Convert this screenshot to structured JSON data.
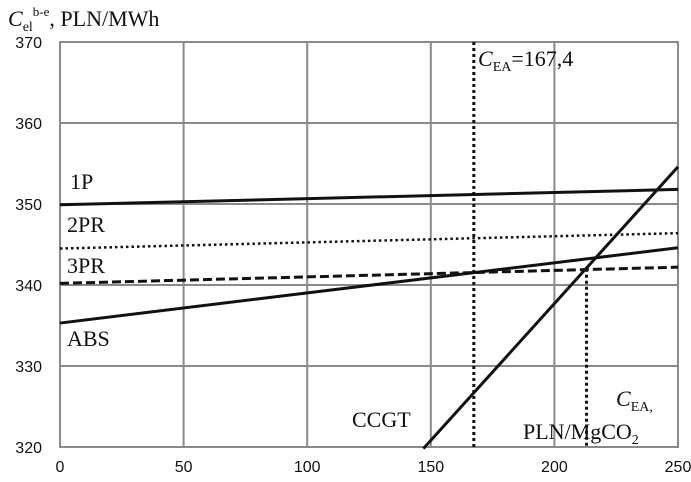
{
  "chart_data": {
    "type": "line",
    "title": "",
    "ylabel_parts": {
      "symbol": "C",
      "sub": "el",
      "sup": "b-e",
      "unit": ", PLN/MWh"
    },
    "xlabel_parts": {
      "symbol": "C",
      "sub": "EA,",
      "unit_prefix": "PLN/MgCO",
      "unit_sub": "2"
    },
    "xlim": [
      0,
      250
    ],
    "ylim": [
      320,
      370
    ],
    "x_ticks": [
      0,
      50,
      100,
      150,
      200,
      250
    ],
    "y_ticks": [
      320,
      330,
      340,
      350,
      360,
      370
    ],
    "x_tick_labels": [
      "0",
      "50",
      "100",
      "150",
      "200",
      "250"
    ],
    "y_tick_labels": [
      "320",
      "330",
      "340",
      "350",
      "360",
      "370"
    ],
    "grid": true,
    "series": [
      {
        "name": "1P",
        "x": [
          0,
          250
        ],
        "y": [
          349.9,
          351.8
        ],
        "style": "solid",
        "width": 3
      },
      {
        "name": "2PR",
        "x": [
          0,
          250
        ],
        "y": [
          344.5,
          346.4
        ],
        "style": "dotted",
        "width": 2.5
      },
      {
        "name": "3PR",
        "x": [
          0,
          250
        ],
        "y": [
          340.2,
          342.2
        ],
        "style": "dashed",
        "width": 3
      },
      {
        "name": "ABS",
        "x": [
          0,
          250
        ],
        "y": [
          335.3,
          344.6
        ],
        "style": "solid",
        "width": 3
      },
      {
        "name": "CCGT",
        "x": [
          147,
          250
        ],
        "y": [
          319.8,
          354.6
        ],
        "style": "solid",
        "width": 3
      }
    ],
    "vlines": [
      {
        "x": 167.4,
        "y_top": 370,
        "label_symbol": "C",
        "label_sub": "EA",
        "label_value": "=167,4"
      },
      {
        "x": 213,
        "y_top": 342
      }
    ]
  }
}
